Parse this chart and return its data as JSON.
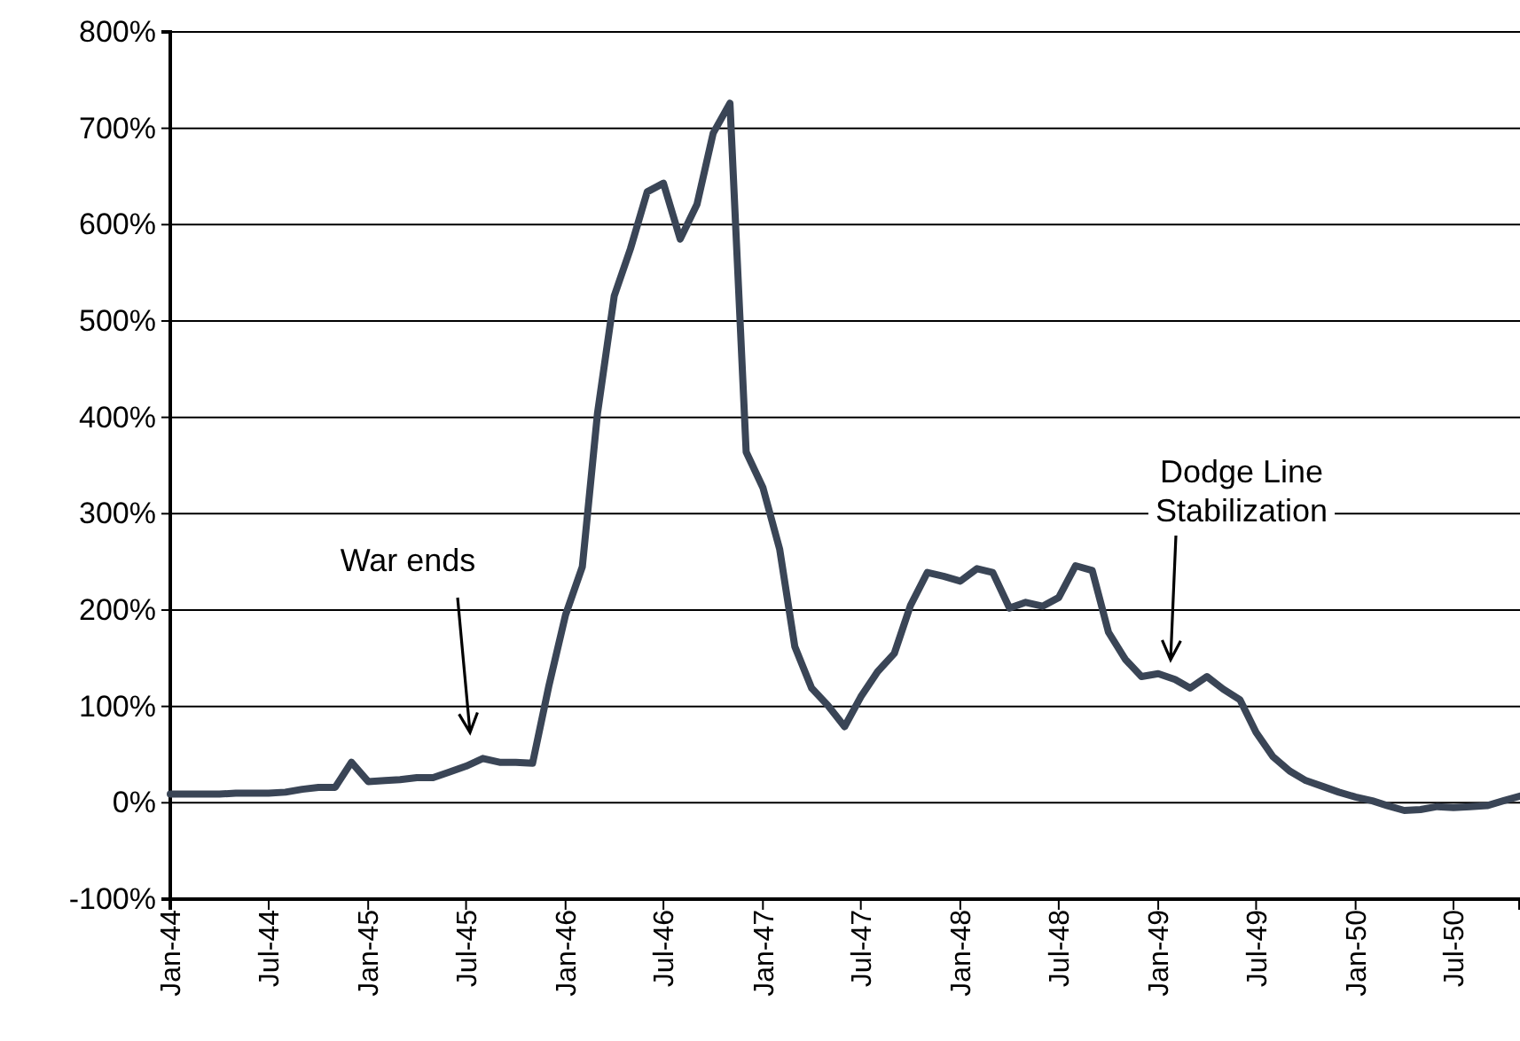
{
  "chart_data": {
    "type": "line",
    "x": [
      "1944-01",
      "1944-02",
      "1944-03",
      "1944-04",
      "1944-05",
      "1944-06",
      "1944-07",
      "1944-08",
      "1944-09",
      "1944-10",
      "1944-11",
      "1944-12",
      "1945-01",
      "1945-02",
      "1945-03",
      "1945-04",
      "1945-05",
      "1945-06",
      "1945-07",
      "1945-08",
      "1945-09",
      "1945-10",
      "1945-11",
      "1945-12",
      "1946-01",
      "1946-02",
      "1946-03",
      "1946-04",
      "1946-05",
      "1946-06",
      "1946-07",
      "1946-08",
      "1946-09",
      "1946-10",
      "1946-11",
      "1946-12",
      "1947-01",
      "1947-02",
      "1947-03",
      "1947-04",
      "1947-05",
      "1947-06",
      "1947-07",
      "1947-08",
      "1947-09",
      "1947-10",
      "1947-11",
      "1947-12",
      "1948-01",
      "1948-02",
      "1948-03",
      "1948-04",
      "1948-05",
      "1948-06",
      "1948-07",
      "1948-08",
      "1948-09",
      "1948-10",
      "1948-11",
      "1948-12",
      "1949-01",
      "1949-02",
      "1949-03",
      "1949-04",
      "1949-05",
      "1949-06",
      "1949-07",
      "1949-08",
      "1949-09",
      "1949-10",
      "1949-11",
      "1949-12",
      "1950-01",
      "1950-02",
      "1950-03",
      "1950-04",
      "1950-05",
      "1950-06",
      "1950-07",
      "1950-08",
      "1950-09",
      "1950-10",
      "1950-11"
    ],
    "series": [
      {
        "color": "#3a4556",
        "values": [
          9,
          9,
          9,
          9,
          10,
          10,
          10,
          11,
          14,
          16,
          16,
          42,
          22,
          23,
          24,
          26,
          26,
          32,
          38,
          46,
          42,
          42,
          41,
          121,
          195,
          245,
          404,
          526,
          575,
          634,
          643,
          585,
          621,
          695,
          726,
          364,
          327,
          263,
          162,
          119,
          101,
          79,
          110,
          136,
          155,
          205,
          239,
          235,
          230,
          243,
          239,
          202,
          208,
          204,
          213,
          246,
          241,
          177,
          149,
          131,
          134,
          128,
          119,
          131,
          118,
          107,
          73,
          48,
          33,
          23,
          17,
          11,
          6,
          2,
          -3,
          -8,
          -7,
          -4,
          -5,
          -4,
          -3,
          2,
          7
        ]
      }
    ],
    "xlim": [
      "1944-01",
      "1950-11"
    ],
    "xticks": [
      {
        "value": "1944-01",
        "label": "Jan-44"
      },
      {
        "value": "1944-07",
        "label": "Jul-44"
      },
      {
        "value": "1945-01",
        "label": "Jan-45"
      },
      {
        "value": "1945-07",
        "label": "Jul-45"
      },
      {
        "value": "1946-01",
        "label": "Jan-46"
      },
      {
        "value": "1946-07",
        "label": "Jul-46"
      },
      {
        "value": "1947-01",
        "label": "Jan-47"
      },
      {
        "value": "1947-07",
        "label": "Jul-47"
      },
      {
        "value": "1948-01",
        "label": "Jan-48"
      },
      {
        "value": "1948-07",
        "label": "Jul-48"
      },
      {
        "value": "1949-01",
        "label": "Jan-49"
      },
      {
        "value": "1949-07",
        "label": "Jul-49"
      },
      {
        "value": "1950-01",
        "label": "Jan-50"
      },
      {
        "value": "1950-07",
        "label": "Jul-50"
      }
    ],
    "ylim": [
      -100,
      800
    ],
    "yticks": [
      {
        "value": -100,
        "label": "-100%"
      },
      {
        "value": 0,
        "label": "0%"
      },
      {
        "value": 100,
        "label": "100%"
      },
      {
        "value": 200,
        "label": "200%"
      },
      {
        "value": 300,
        "label": "300%"
      },
      {
        "value": 400,
        "label": "400%"
      },
      {
        "value": 500,
        "label": "500%"
      },
      {
        "value": 600,
        "label": "600%"
      },
      {
        "value": 700,
        "label": "700%"
      },
      {
        "value": 800,
        "label": "800%"
      }
    ],
    "grid": "y",
    "marker": "none",
    "line_style": "solid",
    "annotations": [
      "War ends",
      "Dodge Line\nStabilization"
    ]
  }
}
